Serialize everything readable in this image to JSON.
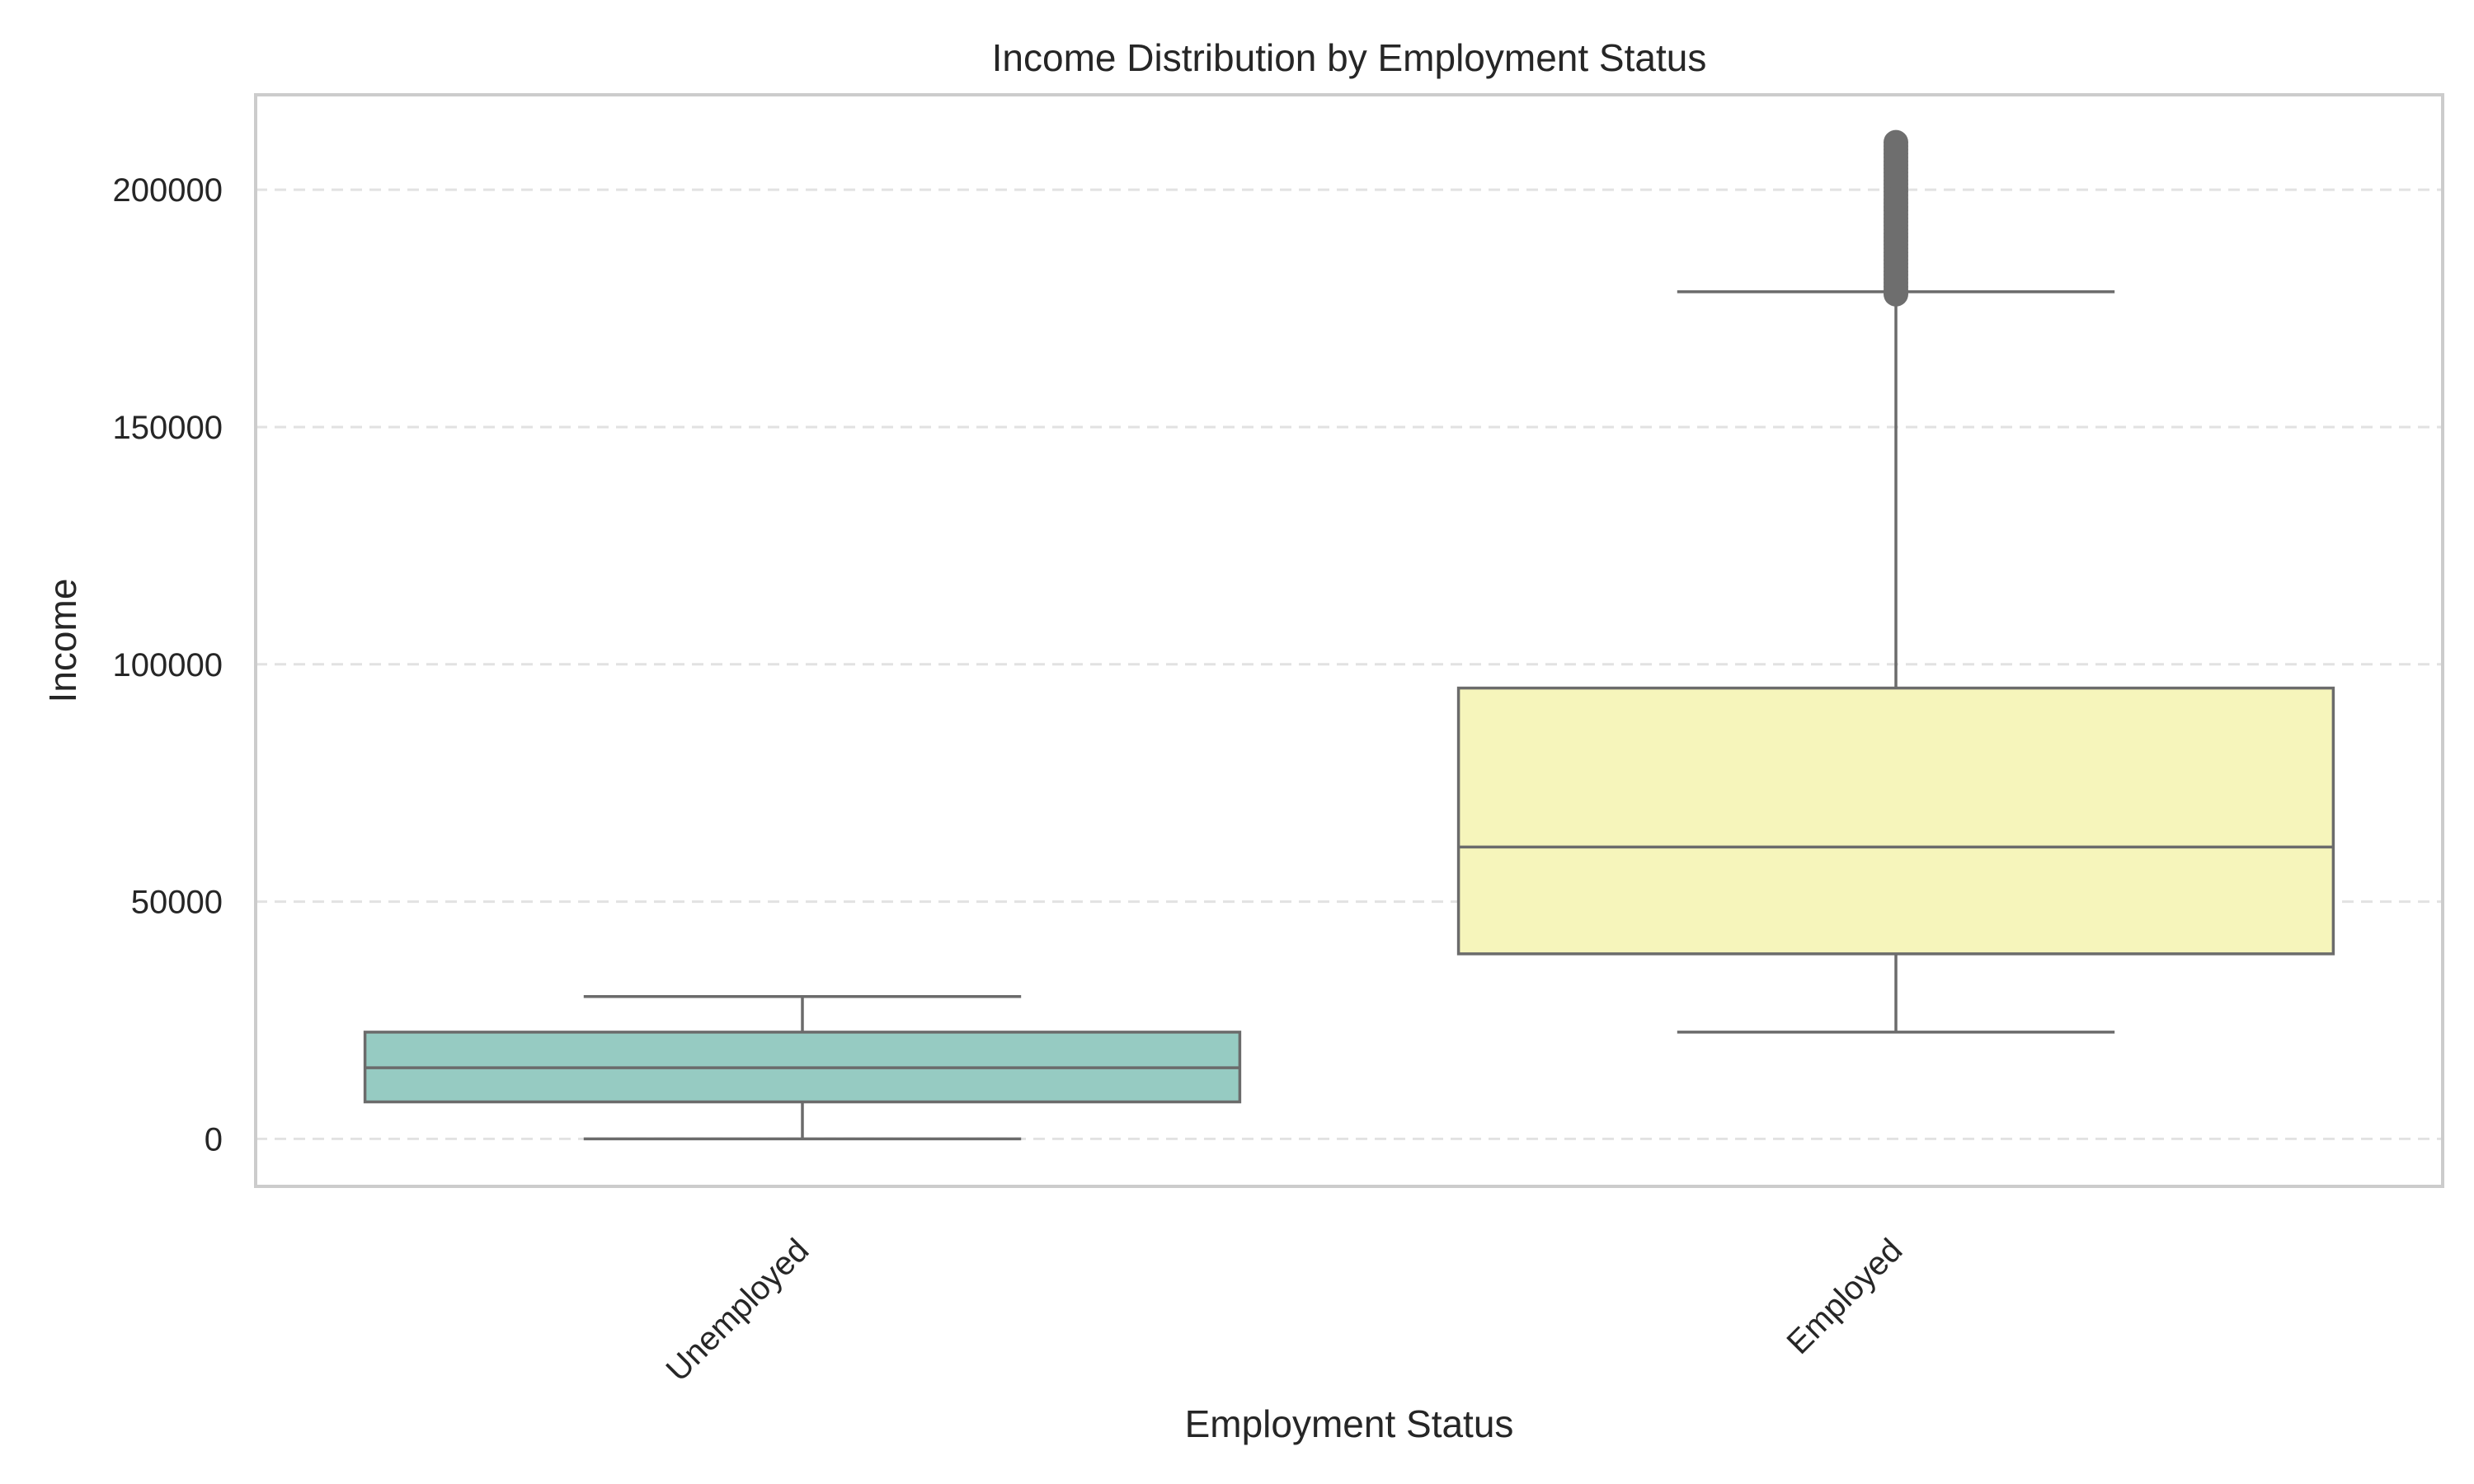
{
  "chart_data": {
    "type": "box",
    "title": "Income Distribution by Employment Status",
    "xlabel": "Employment Status",
    "ylabel": "Income",
    "ylim": [
      -10000,
      220000
    ],
    "yticks": [
      0,
      50000,
      100000,
      150000,
      200000
    ],
    "grid": "horizontal-dashed",
    "categories": [
      "Unemployed",
      "Employed"
    ],
    "boxes": [
      {
        "category": "Unemployed",
        "whisker_low": 0,
        "q1": 7800,
        "median": 15000,
        "q3": 22500,
        "whisker_high": 30000,
        "outlier_range": null,
        "color": "#96cbc2"
      },
      {
        "category": "Employed",
        "whisker_low": 22500,
        "q1": 39000,
        "median": 61500,
        "q3": 95000,
        "whisker_high": 178500,
        "outlier_range": [
          178000,
          210000
        ],
        "color": "#f6f5bb"
      }
    ],
    "colors": {
      "line": "#6b6b6b",
      "grid": "#e2e2e2",
      "frame": "#cccccc",
      "outlier": "#6e6e6e"
    }
  }
}
